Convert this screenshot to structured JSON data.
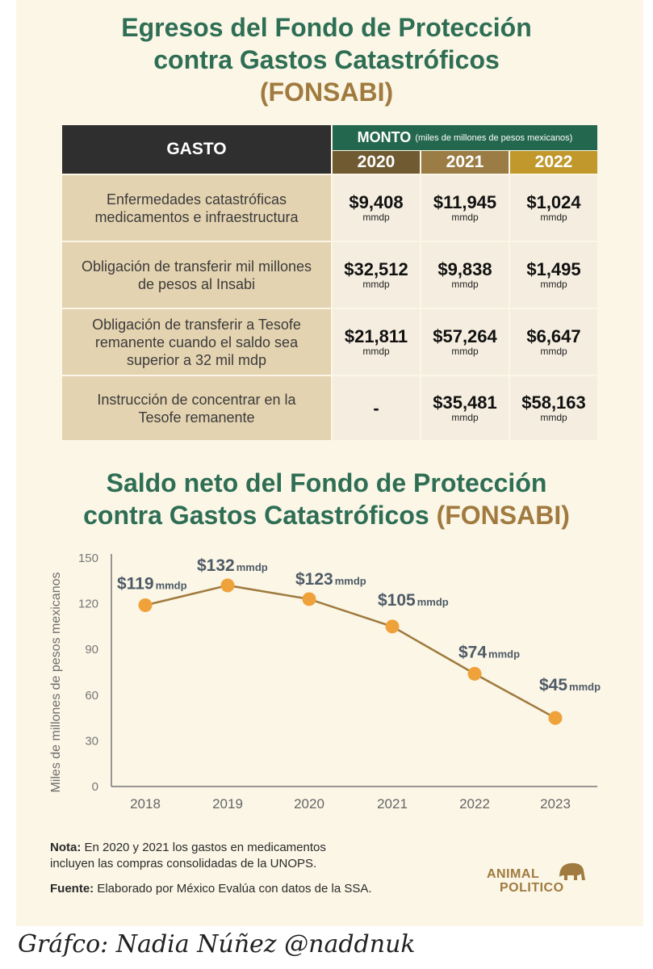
{
  "title1_line1": "Egresos del  Fondo de Protección",
  "title1_line2": "contra Gastos Catastróficos",
  "title1_line3": "(FONSABI)",
  "table": {
    "col_gasto": "GASTO",
    "monto_label": "MONTO",
    "monto_units": "(miles de millones de pesos mexicanos)",
    "years": [
      "2020",
      "2021",
      "2022"
    ],
    "year_colors": [
      "#6f5a32",
      "#9a7c44",
      "#c0982c"
    ],
    "rows": [
      {
        "label": "Enfermedades catastróficas medicamentos e infraestructura",
        "values": [
          "$9,408",
          "$11,945",
          "$1,024"
        ]
      },
      {
        "label": "Obligación de transferir mil millones de pesos al Insabi",
        "values": [
          "$32,512",
          "$9,838",
          "$1,495"
        ]
      },
      {
        "label": "Obligación de transferir a Tesofe remanente cuando el saldo sea superior a 32 mil mdp",
        "values": [
          "$21,811",
          "$57,264",
          "$6,647"
        ]
      },
      {
        "label": "Instrucción de concentrar en la Tesofe remanente",
        "values": [
          "-",
          "$35,481",
          "$58,163"
        ]
      }
    ],
    "unit": "mmdp"
  },
  "title2_line1": "Saldo neto del Fondo de Protección",
  "title2_line2a": "contra Gastos Catastróficos",
  "title2_line2b": "(FONSABI)",
  "chart_data": {
    "type": "line",
    "title": "Saldo neto del Fondo de Protección contra Gastos Catastróficos (FONSABI)",
    "xlabel": "",
    "ylabel": "Miles de millones de pesos mexicanos",
    "x": [
      "2018",
      "2019",
      "2020",
      "2021",
      "2022",
      "2023"
    ],
    "series": [
      {
        "name": "Saldo neto",
        "values": [
          119,
          132,
          123,
          105,
          74,
          45
        ]
      }
    ],
    "data_labels": [
      "$119",
      "$132",
      "$123",
      "$105",
      "$74",
      "$45"
    ],
    "data_label_unit": "mmdp",
    "ylim": [
      0,
      150
    ],
    "yticks": [
      0,
      30,
      60,
      90,
      120,
      150
    ],
    "grid": false,
    "line_color": "#a07a3e",
    "marker_color": "#f0a23a"
  },
  "note_label": "Nota:",
  "note_text1": "En 2020 y 2021 los gastos en medicamentos",
  "note_text2": "incluyen las compras consolidadas de la UNOPS.",
  "source_label": "Fuente:",
  "source_text": "Elaborado por México Evalúa con datos de la SSA.",
  "logo_line1": "ANIMAL",
  "logo_line2": "POLITICO",
  "credit": "Gráfco: Nadia Núñez @naddnuk"
}
